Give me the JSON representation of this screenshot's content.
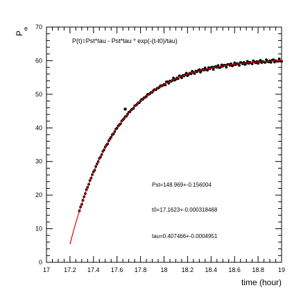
{
  "chart_data": {
    "type": "scatter",
    "title": "",
    "xlabel": "time (hour)",
    "ylabel": "P",
    "ylabel_subscript": "e",
    "xlim": [
      17,
      19
    ],
    "ylim": [
      0,
      70
    ],
    "x_ticks": [
      "17",
      "17.2",
      "17.4",
      "17.6",
      "17.8",
      "18",
      "18.2",
      "18.4",
      "18.6",
      "18.8",
      "19"
    ],
    "y_ticks": [
      "0",
      "10",
      "20",
      "30",
      "40",
      "50",
      "60",
      "70"
    ],
    "grid": false,
    "annotations": {
      "formula": "P(t)=Pst*tau - Pst*tau * exp(-(t-t0)/tau)",
      "pst": "Pst=148.969+-0.156004",
      "t0": "t0=17.1623+-0.000318468",
      "tau": "tau=0.407466+-0.0004951"
    },
    "fit": {
      "pst": 148.969,
      "t0": 17.1623,
      "tau": 0.407466,
      "x_range": [
        17.2,
        19
      ]
    },
    "outliers": [
      {
        "x": 17.67,
        "y": 45.6
      }
    ],
    "series": [
      {
        "kind": "points",
        "color": "#000000",
        "x_range": [
          17.28,
          19.0
        ],
        "step": 0.01
      },
      {
        "kind": "line",
        "color": "#dd0000"
      }
    ]
  }
}
